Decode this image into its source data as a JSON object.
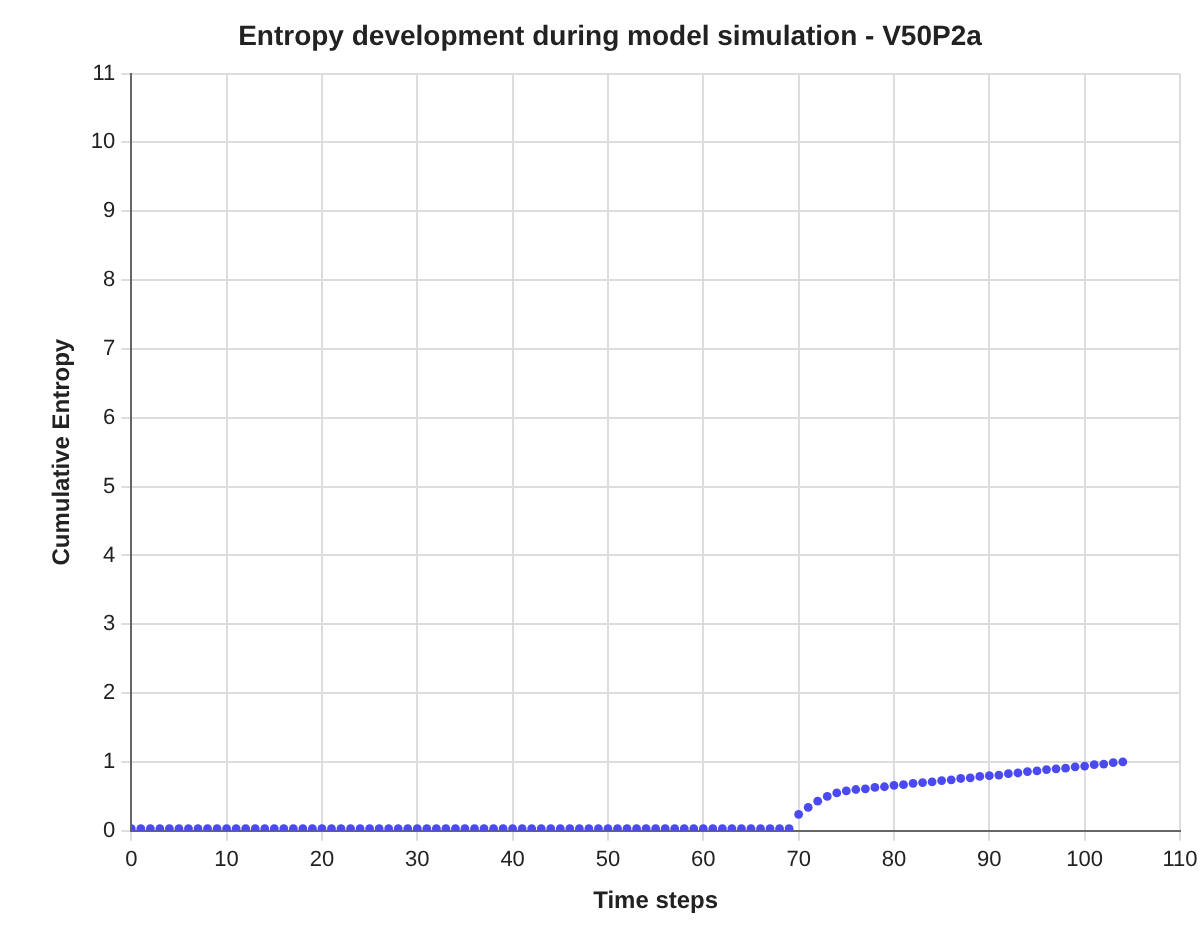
{
  "chart_data": {
    "type": "scatter",
    "title": "Entropy development during model simulation - V50P2a",
    "xlabel": "Time steps",
    "ylabel": "Cumulative Entropy",
    "x": [
      0,
      1,
      2,
      3,
      4,
      5,
      6,
      7,
      8,
      9,
      10,
      11,
      12,
      13,
      14,
      15,
      16,
      17,
      18,
      19,
      20,
      21,
      22,
      23,
      24,
      25,
      26,
      27,
      28,
      29,
      30,
      31,
      32,
      33,
      34,
      35,
      36,
      37,
      38,
      39,
      40,
      41,
      42,
      43,
      44,
      45,
      46,
      47,
      48,
      49,
      50,
      51,
      52,
      53,
      54,
      55,
      56,
      57,
      58,
      59,
      60,
      61,
      62,
      63,
      64,
      65,
      66,
      67,
      68,
      69,
      70,
      71,
      72,
      73,
      74,
      75,
      76,
      77,
      78,
      79,
      80,
      81,
      82,
      83,
      84,
      85,
      86,
      87,
      88,
      89,
      90,
      91,
      92,
      93,
      94,
      95,
      96,
      97,
      98,
      99,
      100,
      101,
      102,
      103,
      104
    ],
    "series": [
      {
        "color": "#4a4af0",
        "values": [
          0.03,
          0.03,
          0.03,
          0.03,
          0.03,
          0.03,
          0.03,
          0.03,
          0.03,
          0.03,
          0.03,
          0.03,
          0.03,
          0.03,
          0.03,
          0.03,
          0.03,
          0.03,
          0.03,
          0.03,
          0.03,
          0.03,
          0.03,
          0.03,
          0.03,
          0.03,
          0.03,
          0.03,
          0.03,
          0.03,
          0.03,
          0.03,
          0.03,
          0.03,
          0.03,
          0.03,
          0.03,
          0.03,
          0.03,
          0.03,
          0.03,
          0.03,
          0.03,
          0.03,
          0.03,
          0.03,
          0.03,
          0.03,
          0.03,
          0.03,
          0.03,
          0.03,
          0.03,
          0.03,
          0.03,
          0.03,
          0.03,
          0.03,
          0.03,
          0.03,
          0.03,
          0.03,
          0.03,
          0.03,
          0.03,
          0.03,
          0.03,
          0.03,
          0.03,
          0.03,
          0.24,
          0.34,
          0.43,
          0.5,
          0.55,
          0.58,
          0.6,
          0.61,
          0.63,
          0.64,
          0.66,
          0.67,
          0.69,
          0.7,
          0.71,
          0.73,
          0.74,
          0.76,
          0.77,
          0.79,
          0.8,
          0.81,
          0.83,
          0.84,
          0.86,
          0.87,
          0.89,
          0.9,
          0.91,
          0.93,
          0.94,
          0.96,
          0.97,
          0.99,
          1.0
        ]
      }
    ],
    "xlim": [
      0,
      110
    ],
    "xticks": [
      0,
      10,
      20,
      30,
      40,
      50,
      60,
      70,
      80,
      90,
      100,
      110
    ],
    "ylim": [
      0,
      11
    ],
    "yticks": [
      0,
      1,
      2,
      3,
      4,
      5,
      6,
      7,
      8,
      9,
      10,
      11
    ],
    "grid": true,
    "marker": "circle",
    "legend": false
  }
}
